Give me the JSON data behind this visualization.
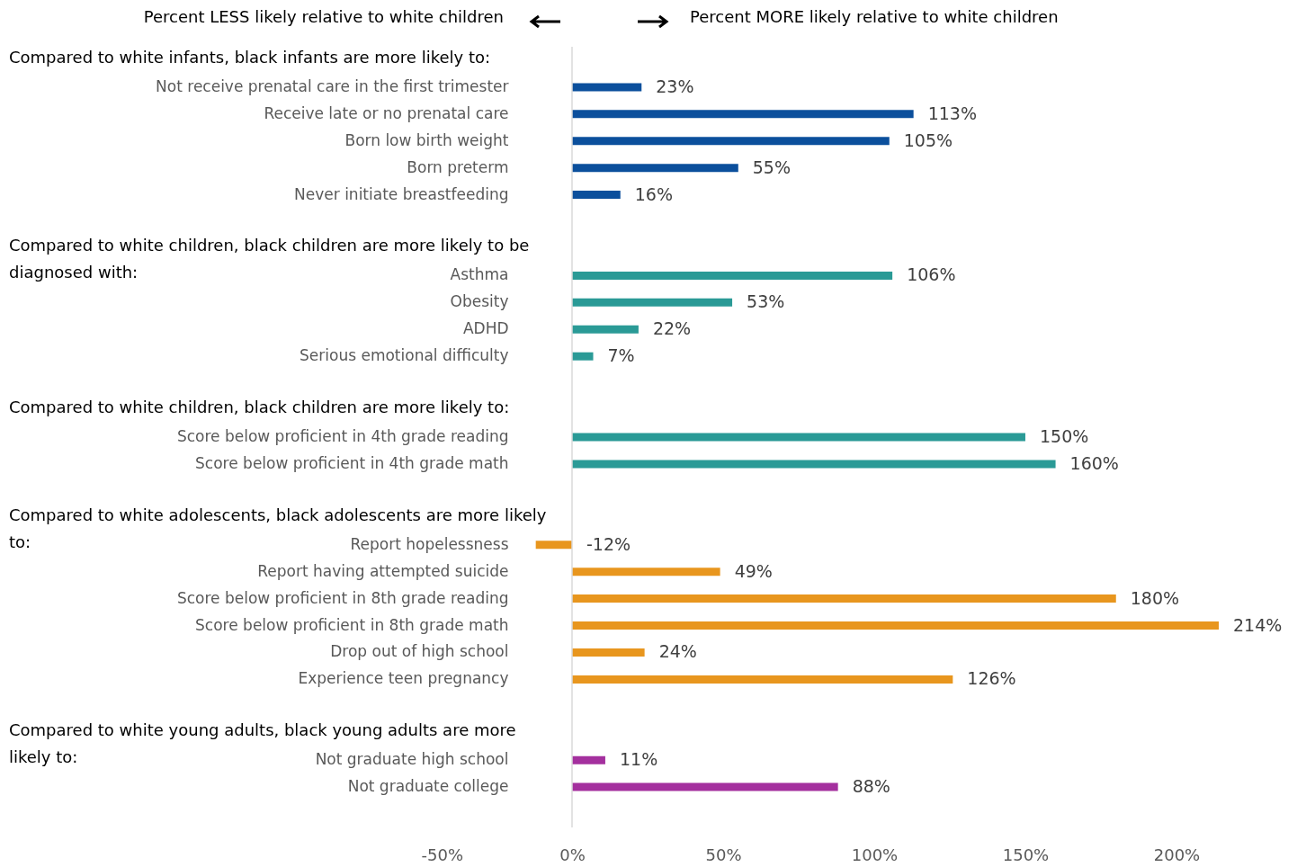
{
  "chart_data": {
    "type": "bar",
    "orientation": "horizontal",
    "categories": [
      "Not receive prenatal care in the first trimester",
      "Receive late or no prenatal care",
      "Born low birth weight",
      "Born preterm",
      "Never initiate breastfeeding",
      null,
      null,
      "Asthma",
      "Obesity",
      "ADHD",
      "Serious emotional difficulty",
      null,
      null,
      "Score below proficient in 4th grade reading",
      "Score below proficient in 4th grade math",
      null,
      null,
      "Report hopelessness",
      "Report having attempted suicide",
      "Score below proficient in 8th grade reading",
      "Score below proficient in 8th grade math",
      "Drop out of high school",
      "Experience teen pregnancy",
      null,
      null,
      "Not graduate high school",
      "Not graduate college"
    ],
    "values": [
      23,
      113,
      105,
      55,
      16,
      null,
      null,
      106,
      53,
      22,
      7,
      null,
      null,
      150,
      160,
      null,
      null,
      -12,
      49,
      180,
      214,
      24,
      126,
      null,
      null,
      11,
      88
    ],
    "value_labels": [
      "23%",
      "113%",
      "105%",
      "55%",
      "16%",
      null,
      null,
      "106%",
      "53%",
      "22%",
      "7%",
      null,
      null,
      "150%",
      "160%",
      null,
      null,
      "-12%",
      "49%",
      "180%",
      "214%",
      "24%",
      "126%",
      null,
      null,
      "11%",
      "88%"
    ],
    "colors": [
      "#0b4f9c",
      "#0b4f9c",
      "#0b4f9c",
      "#0b4f9c",
      "#0b4f9c",
      null,
      null,
      "#2a9a96",
      "#2a9a96",
      "#2a9a96",
      "#2a9a96",
      null,
      null,
      "#2a9a96",
      "#2a9a96",
      null,
      null,
      "#e8961e",
      "#e8961e",
      "#e8961e",
      "#e8961e",
      "#e8961e",
      "#e8961e",
      null,
      null,
      "#a4309e",
      "#a4309e"
    ],
    "xlim": [
      -50,
      214
    ],
    "xticks": [
      {
        "value": -50,
        "label": "-50%"
      },
      {
        "value": 0,
        "label": "0%"
      },
      {
        "value": 50,
        "label": "50%"
      },
      {
        "value": 100,
        "label": "100%"
      },
      {
        "value": 150,
        "label": "150%"
      },
      {
        "value": 200,
        "label": "200%"
      }
    ],
    "ref_lines": [
      {
        "axis": "x",
        "value": 0,
        "color": "#d9d9d9"
      }
    ],
    "annotations": [
      "Percent LESS likely relative to white children",
      "Percent MORE likely relative to white children",
      "Compared to white infants, black infants are more likely to:",
      "Compared to white children, black children are more likely to be diagnosed with:",
      "Compared to white children, black children are more likely to:",
      "Compared to white adolescents, black adolescents are more likely to:",
      "Compared to white young adults, black young adults are more likely to:"
    ],
    "grid": false
  }
}
